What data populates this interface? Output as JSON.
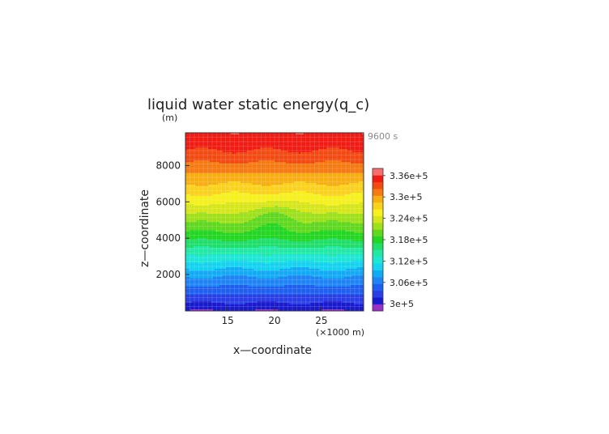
{
  "chart_data": {
    "type": "heatmap",
    "title": "liquid water static energy(q_c)",
    "y_unit": "(m)",
    "time_label": "9600 s",
    "xlabel": "x—coordinate",
    "x_unit": "(×1000 m)",
    "ylabel": "z—coordinate",
    "xlim": [
      10.5,
      29.5
    ],
    "ylim": [
      0,
      9800
    ],
    "x_ticks": [
      15,
      20,
      25
    ],
    "y_ticks": [
      2000,
      4000,
      6000,
      8000
    ],
    "colorbar": {
      "min": 298000,
      "max": 338000,
      "step": 2000,
      "tick_values": [
        300000,
        306000,
        312000,
        318000,
        324000,
        330000,
        336000
      ],
      "tick_labels": [
        "3e+5",
        "3.06e+5",
        "3.12e+5",
        "3.18e+5",
        "3.24e+5",
        "3.3e+5",
        "3.36e+5"
      ],
      "colors": [
        "#9b30c8",
        "#1a1acd",
        "#2a3ee6",
        "#1f5fef",
        "#1e84f5",
        "#12aaf5",
        "#14d2f0",
        "#1de6d6",
        "#22e8a6",
        "#1fde6a",
        "#22d622",
        "#5fd81f",
        "#9ee01a",
        "#d6e61a",
        "#f5f01e",
        "#fad21e",
        "#f7ae12",
        "#f57a12",
        "#f24a12",
        "#f01c14",
        "#f86e6e"
      ]
    },
    "profile_z": [
      0,
      1000,
      2000,
      3000,
      4000,
      5000,
      6000,
      7000,
      8000,
      9000,
      9800
    ],
    "profile_value": [
      300000,
      304500,
      308500,
      313500,
      318500,
      322500,
      326500,
      330000,
      333500,
      336500,
      338000
    ],
    "perturbation_center": {
      "x": 20,
      "z": 5300
    }
  }
}
